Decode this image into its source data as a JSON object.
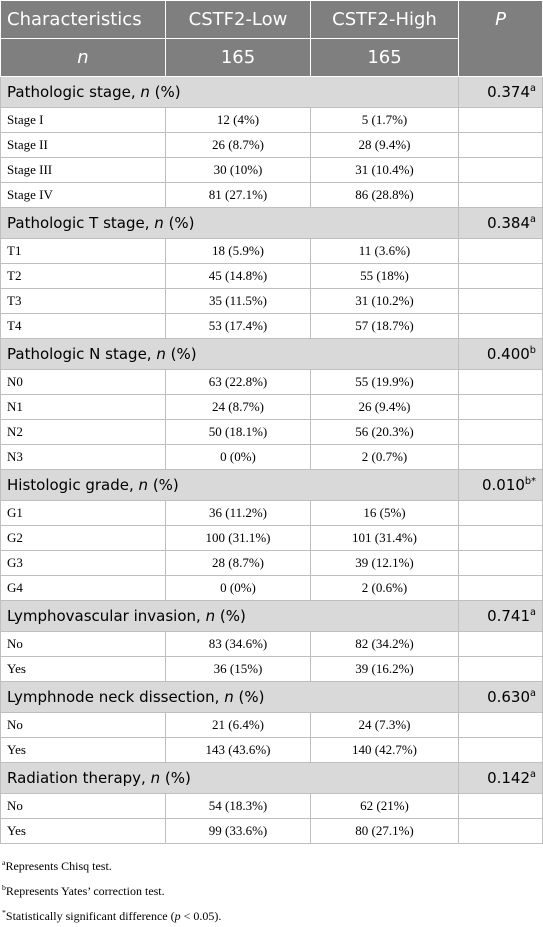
{
  "header": {
    "columns": [
      "Characteristics",
      "CSTF2-Low",
      "CSTF2-High",
      "P"
    ],
    "n_row": [
      "n",
      "165",
      "165"
    ]
  },
  "sections": [
    {
      "title_parts": [
        "Pathologic stage, ",
        "n",
        " (%)"
      ],
      "p": "0.374",
      "p_note": "a",
      "rows": [
        [
          "Stage I",
          "12 (4%)",
          "5 (1.7%)"
        ],
        [
          "Stage II",
          "26 (8.7%)",
          "28 (9.4%)"
        ],
        [
          "Stage III",
          "30 (10%)",
          "31 (10.4%)"
        ],
        [
          "Stage IV",
          "81 (27.1%)",
          "86 (28.8%)"
        ]
      ]
    },
    {
      "title_parts": [
        "Pathologic T stage, ",
        "n",
        " (%)"
      ],
      "p": "0.384",
      "p_note": "a",
      "rows": [
        [
          "T1",
          "18 (5.9%)",
          "11 (3.6%)"
        ],
        [
          "T2",
          "45 (14.8%)",
          "55 (18%)"
        ],
        [
          "T3",
          "35 (11.5%)",
          "31 (10.2%)"
        ],
        [
          "T4",
          "53 (17.4%)",
          "57 (18.7%)"
        ]
      ]
    },
    {
      "title_parts": [
        "Pathologic N stage, ",
        "n",
        " (%)"
      ],
      "p": "0.400",
      "p_note": "b",
      "rows": [
        [
          "N0",
          "63 (22.8%)",
          "55 (19.9%)"
        ],
        [
          "N1",
          "24 (8.7%)",
          "26 (9.4%)"
        ],
        [
          "N2",
          "50 (18.1%)",
          "56 (20.3%)"
        ],
        [
          "N3",
          "0 (0%)",
          "2 (0.7%)"
        ]
      ]
    },
    {
      "title_parts": [
        "Histologic grade, ",
        "n",
        " (%)"
      ],
      "p": "0.010",
      "p_note": "b*",
      "rows": [
        [
          "G1",
          "36 (11.2%)",
          "16 (5%)"
        ],
        [
          "G2",
          "100 (31.1%)",
          "101 (31.4%)"
        ],
        [
          "G3",
          "28 (8.7%)",
          "39 (12.1%)"
        ],
        [
          "G4",
          "0 (0%)",
          "2 (0.6%)"
        ]
      ]
    },
    {
      "title_parts": [
        "Lymphovascular invasion, ",
        "n",
        " (%)"
      ],
      "p": "0.741",
      "p_note": "a",
      "rows": [
        [
          "No",
          "83 (34.6%)",
          "82 (34.2%)"
        ],
        [
          "Yes",
          "36 (15%)",
          "39 (16.2%)"
        ]
      ]
    },
    {
      "title_parts": [
        "Lymphnode neck dissection, ",
        "n",
        " (%)"
      ],
      "p": "0.630",
      "p_note": "a",
      "rows": [
        [
          "No",
          "21 (6.4%)",
          "24 (7.3%)"
        ],
        [
          "Yes",
          "143 (43.6%)",
          "140 (42.7%)"
        ]
      ]
    },
    {
      "title_parts": [
        "Radiation therapy, ",
        "n",
        " (%)"
      ],
      "p": "0.142",
      "p_note": "a",
      "rows": [
        [
          "No",
          "54 (18.3%)",
          "62 (21%)"
        ],
        [
          "Yes",
          "99 (33.6%)",
          "80 (27.1%)"
        ]
      ]
    }
  ],
  "footnotes": [
    {
      "mark": "a",
      "parts": [
        "Represents Chisq test."
      ]
    },
    {
      "mark": "b",
      "parts": [
        "Represents Yates’ correction test."
      ]
    },
    {
      "mark": "*",
      "parts": [
        "Statistically significant difference (",
        "p",
        " < 0.05)."
      ]
    }
  ]
}
